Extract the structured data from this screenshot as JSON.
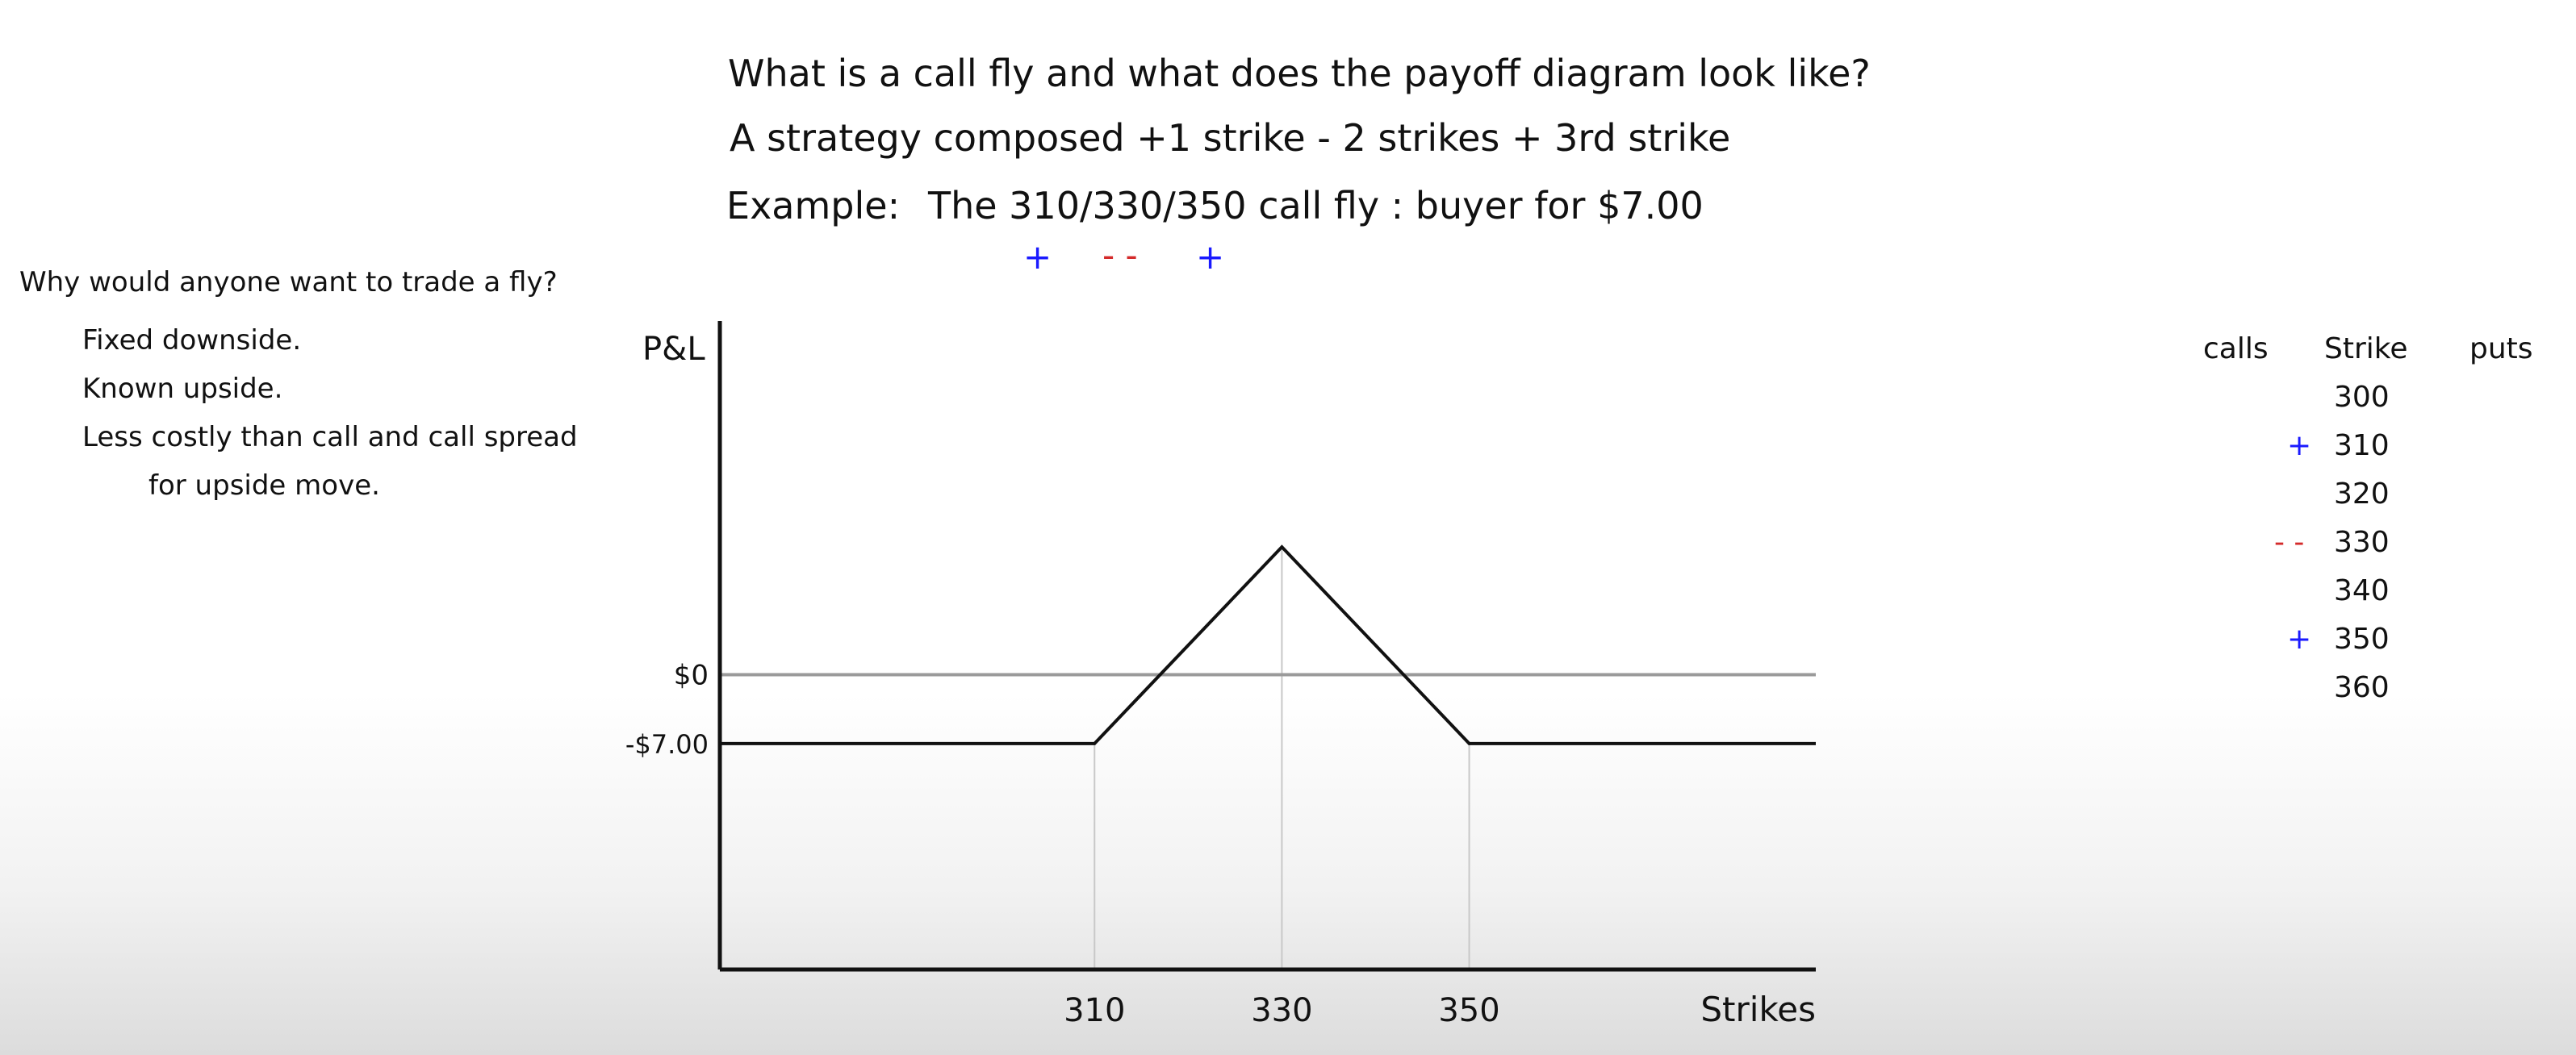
{
  "heading": {
    "line1": "What is a call fly and what does the payoff diagram look like?",
    "line2": "A strategy composed +1 strike - 2 strikes + 3rd strike",
    "example_label": "Example:",
    "example_text": "The 310/330/350 call fly : buyer for $7.00",
    "signs": [
      "+",
      "- -",
      "+"
    ]
  },
  "sidebar": {
    "question": "Why would anyone want to trade a fly?",
    "points": [
      "Fixed downside.",
      "Known upside.",
      "Less costly than call and call spread",
      "for upside move."
    ]
  },
  "strike_table": {
    "headers": [
      "calls",
      "Strike",
      "puts"
    ],
    "rows": [
      {
        "strike": "300",
        "call_sign": ""
      },
      {
        "strike": "310",
        "call_sign": "+"
      },
      {
        "strike": "320",
        "call_sign": ""
      },
      {
        "strike": "330",
        "call_sign": "- -"
      },
      {
        "strike": "340",
        "call_sign": ""
      },
      {
        "strike": "350",
        "call_sign": "+"
      },
      {
        "strike": "360",
        "call_sign": ""
      }
    ]
  },
  "colors": {
    "plus": "#1a1aff",
    "minus": "#d42a2a",
    "payoff": "#111111",
    "zero_line": "#9a9a9a",
    "guide": "#c8c8c8"
  },
  "chart_data": {
    "type": "line",
    "title": "",
    "ylabel": "P&L",
    "xlabel": "Strikes",
    "x_ticks": [
      "310",
      "330",
      "350"
    ],
    "y_ticks": [
      "$0",
      "-$7.00"
    ],
    "xlim": [
      270,
      387
    ],
    "ylim": [
      -30,
      36
    ],
    "series": [
      {
        "x": [
          270,
          310,
          330,
          350,
          387
        ],
        "y": [
          -7,
          -7,
          13,
          -7,
          -7
        ]
      }
    ],
    "reference_lines": [
      {
        "y": 0
      }
    ],
    "guides_x": [
      310,
      330,
      350
    ]
  }
}
